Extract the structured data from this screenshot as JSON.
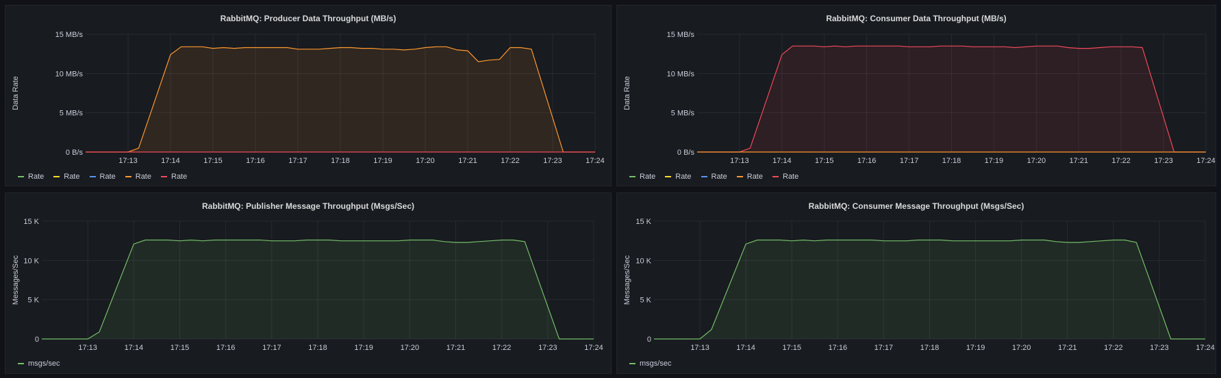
{
  "panels": [
    {
      "title": "RabbitMQ: Producer Data Throughput (MB/s)",
      "legend": [
        {
          "label": "Rate",
          "color": "#73bf69"
        },
        {
          "label": "Rate",
          "color": "#fade2a"
        },
        {
          "label": "Rate",
          "color": "#5794f2"
        },
        {
          "label": "Rate",
          "color": "#ff9830"
        },
        {
          "label": "Rate",
          "color": "#f2495c"
        }
      ]
    },
    {
      "title": "RabbitMQ: Consumer Data Throughput (MB/s)",
      "legend": [
        {
          "label": "Rate",
          "color": "#73bf69"
        },
        {
          "label": "Rate",
          "color": "#fade2a"
        },
        {
          "label": "Rate",
          "color": "#5794f2"
        },
        {
          "label": "Rate",
          "color": "#ff9830"
        },
        {
          "label": "Rate",
          "color": "#f2495c"
        }
      ]
    },
    {
      "title": "RabbitMQ: Publisher Message Throughput (Msgs/Sec)",
      "legend": [
        {
          "label": "msgs/sec",
          "color": "#73bf69"
        }
      ]
    },
    {
      "title": "RabbitMQ: Consumer Message Throughput (Msgs/Sec)",
      "legend": [
        {
          "label": "msgs/sec",
          "color": "#73bf69"
        }
      ]
    }
  ],
  "chart_data": [
    {
      "type": "area",
      "title": "RabbitMQ: Producer Data Throughput (MB/s)",
      "ylabel": "Data Rate",
      "xlabel": "",
      "yticks": [
        "0 B/s",
        "5 MB/s",
        "10 MB/s",
        "15 MB/s"
      ],
      "ylim": [
        0,
        15
      ],
      "xticks": [
        "17:13",
        "17:14",
        "17:15",
        "17:16",
        "17:17",
        "17:18",
        "17:19",
        "17:20",
        "17:21",
        "17:22",
        "17:23",
        "17:24"
      ],
      "series": [
        {
          "color": "#ff9830",
          "x": [
            "17:12:00",
            "17:12:15",
            "17:12:30",
            "17:12:45",
            "17:13:00",
            "17:13:15",
            "17:14:00",
            "17:14:15",
            "17:14:30",
            "17:14:45",
            "17:15:00",
            "17:15:15",
            "17:15:30",
            "17:15:45",
            "17:16:00",
            "17:16:15",
            "17:16:30",
            "17:16:45",
            "17:17:00",
            "17:17:15",
            "17:17:30",
            "17:17:45",
            "17:18:00",
            "17:18:15",
            "17:18:30",
            "17:18:45",
            "17:19:00",
            "17:19:15",
            "17:19:30",
            "17:19:45",
            "17:20:00",
            "17:20:15",
            "17:20:30",
            "17:20:45",
            "17:21:00",
            "17:21:15",
            "17:21:30",
            "17:21:45",
            "17:22:00",
            "17:22:15",
            "17:22:30",
            "17:23:15",
            "17:23:30",
            "17:23:45",
            "17:24:00"
          ],
          "values": [
            0,
            0,
            0,
            0,
            0,
            0.5,
            12.4,
            13.4,
            13.4,
            13.4,
            13.2,
            13.3,
            13.2,
            13.3,
            13.3,
            13.3,
            13.3,
            13.3,
            13.1,
            13.1,
            13.1,
            13.2,
            13.3,
            13.3,
            13.2,
            13.2,
            13.1,
            13.1,
            13.0,
            13.1,
            13.3,
            13.4,
            13.4,
            13.0,
            12.9,
            11.5,
            11.7,
            11.8,
            13.3,
            13.3,
            13.1,
            0,
            0,
            0,
            0
          ]
        },
        {
          "color": "#f2495c",
          "x": [
            "17:12:00",
            "17:24:00"
          ],
          "values": [
            0,
            0
          ]
        }
      ]
    },
    {
      "type": "area",
      "title": "RabbitMQ: Consumer Data Throughput (MB/s)",
      "ylabel": "Data Rate",
      "xlabel": "",
      "yticks": [
        "0 B/s",
        "5 MB/s",
        "10 MB/s",
        "15 MB/s"
      ],
      "ylim": [
        0,
        15
      ],
      "xticks": [
        "17:13",
        "17:14",
        "17:15",
        "17:16",
        "17:17",
        "17:18",
        "17:19",
        "17:20",
        "17:21",
        "17:22",
        "17:23",
        "17:24"
      ],
      "series": [
        {
          "color": "#f2495c",
          "x": [
            "17:12:00",
            "17:12:15",
            "17:12:30",
            "17:12:45",
            "17:13:00",
            "17:13:15",
            "17:14:00",
            "17:14:15",
            "17:14:30",
            "17:14:45",
            "17:15:00",
            "17:15:15",
            "17:15:30",
            "17:15:45",
            "17:16:00",
            "17:16:15",
            "17:16:30",
            "17:16:45",
            "17:17:00",
            "17:17:15",
            "17:17:30",
            "17:17:45",
            "17:18:00",
            "17:18:15",
            "17:18:30",
            "17:18:45",
            "17:19:00",
            "17:19:15",
            "17:19:30",
            "17:19:45",
            "17:20:00",
            "17:20:15",
            "17:20:30",
            "17:20:45",
            "17:21:00",
            "17:21:15",
            "17:21:30",
            "17:21:45",
            "17:22:00",
            "17:22:15",
            "17:22:30",
            "17:23:15",
            "17:23:30",
            "17:23:45",
            "17:24:00"
          ],
          "values": [
            0,
            0,
            0,
            0,
            0,
            0.5,
            12.4,
            13.5,
            13.5,
            13.5,
            13.4,
            13.5,
            13.4,
            13.5,
            13.5,
            13.5,
            13.5,
            13.5,
            13.4,
            13.4,
            13.4,
            13.5,
            13.5,
            13.5,
            13.4,
            13.4,
            13.4,
            13.4,
            13.3,
            13.4,
            13.5,
            13.5,
            13.5,
            13.3,
            13.2,
            13.2,
            13.3,
            13.4,
            13.4,
            13.4,
            13.3,
            0,
            0,
            0,
            0
          ]
        },
        {
          "color": "#ff9830",
          "x": [
            "17:12:00",
            "17:24:00"
          ],
          "values": [
            0,
            0
          ]
        }
      ]
    },
    {
      "type": "area",
      "title": "RabbitMQ: Publisher Message Throughput (Msgs/Sec)",
      "ylabel": "Messages/Sec",
      "xlabel": "",
      "yticks": [
        "0",
        "5 K",
        "10 K",
        "15 K"
      ],
      "ylim": [
        0,
        15
      ],
      "xticks": [
        "17:13",
        "17:14",
        "17:15",
        "17:16",
        "17:17",
        "17:18",
        "17:19",
        "17:20",
        "17:21",
        "17:22",
        "17:23",
        "17:24"
      ],
      "series": [
        {
          "name": "msgs/sec",
          "color": "#73bf69",
          "x": [
            "17:12:00",
            "17:12:15",
            "17:12:30",
            "17:12:45",
            "17:13:00",
            "17:13:15",
            "17:14:00",
            "17:14:15",
            "17:14:30",
            "17:14:45",
            "17:15:00",
            "17:15:15",
            "17:15:30",
            "17:15:45",
            "17:16:00",
            "17:16:15",
            "17:16:30",
            "17:16:45",
            "17:17:00",
            "17:17:15",
            "17:17:30",
            "17:17:45",
            "17:18:00",
            "17:18:15",
            "17:18:30",
            "17:18:45",
            "17:19:00",
            "17:19:15",
            "17:19:30",
            "17:19:45",
            "17:20:00",
            "17:20:15",
            "17:20:30",
            "17:20:45",
            "17:21:00",
            "17:21:15",
            "17:21:30",
            "17:21:45",
            "17:22:00",
            "17:22:15",
            "17:22:30",
            "17:23:15",
            "17:23:30",
            "17:23:45",
            "17:24:00"
          ],
          "values": [
            0,
            0,
            0,
            0,
            0,
            0.9,
            12.1,
            12.6,
            12.6,
            12.6,
            12.5,
            12.6,
            12.5,
            12.6,
            12.6,
            12.6,
            12.6,
            12.6,
            12.5,
            12.5,
            12.5,
            12.6,
            12.6,
            12.6,
            12.5,
            12.5,
            12.5,
            12.5,
            12.5,
            12.5,
            12.6,
            12.6,
            12.6,
            12.4,
            12.3,
            12.3,
            12.4,
            12.5,
            12.6,
            12.6,
            12.4,
            0,
            0,
            0,
            0
          ]
        }
      ]
    },
    {
      "type": "area",
      "title": "RabbitMQ: Consumer Message Throughput (Msgs/Sec)",
      "ylabel": "Messages/Sec",
      "xlabel": "",
      "yticks": [
        "0",
        "5 K",
        "10 K",
        "15 K"
      ],
      "ylim": [
        0,
        15
      ],
      "xticks": [
        "17:13",
        "17:14",
        "17:15",
        "17:16",
        "17:17",
        "17:18",
        "17:19",
        "17:20",
        "17:21",
        "17:22",
        "17:23",
        "17:24"
      ],
      "series": [
        {
          "name": "msgs/sec",
          "color": "#73bf69",
          "x": [
            "17:12:00",
            "17:12:15",
            "17:12:30",
            "17:12:45",
            "17:13:00",
            "17:13:15",
            "17:14:00",
            "17:14:15",
            "17:14:30",
            "17:14:45",
            "17:15:00",
            "17:15:15",
            "17:15:30",
            "17:15:45",
            "17:16:00",
            "17:16:15",
            "17:16:30",
            "17:16:45",
            "17:17:00",
            "17:17:15",
            "17:17:30",
            "17:17:45",
            "17:18:00",
            "17:18:15",
            "17:18:30",
            "17:18:45",
            "17:19:00",
            "17:19:15",
            "17:19:30",
            "17:19:45",
            "17:20:00",
            "17:20:15",
            "17:20:30",
            "17:20:45",
            "17:21:00",
            "17:21:15",
            "17:21:30",
            "17:21:45",
            "17:22:00",
            "17:22:15",
            "17:22:30",
            "17:23:15",
            "17:23:30",
            "17:23:45",
            "17:24:00"
          ],
          "values": [
            0,
            0,
            0,
            0,
            0,
            1.2,
            12.1,
            12.6,
            12.6,
            12.6,
            12.5,
            12.6,
            12.5,
            12.6,
            12.6,
            12.6,
            12.6,
            12.6,
            12.5,
            12.5,
            12.5,
            12.6,
            12.6,
            12.6,
            12.5,
            12.5,
            12.5,
            12.5,
            12.5,
            12.5,
            12.6,
            12.6,
            12.6,
            12.4,
            12.3,
            12.3,
            12.4,
            12.5,
            12.6,
            12.6,
            12.3,
            0,
            0,
            0,
            0
          ]
        }
      ]
    }
  ]
}
